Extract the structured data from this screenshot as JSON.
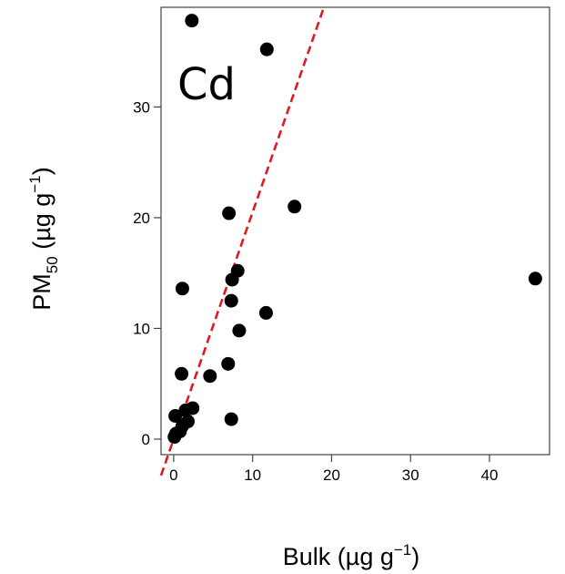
{
  "chart_data": {
    "type": "scatter",
    "panel_label": "Cd",
    "xlabel": {
      "base": "Bulk (µg g",
      "sup": "−1",
      "end": ")"
    },
    "ylabel": {
      "base": "PM",
      "sub": "50",
      "mid": " (µg g",
      "sup": "−1",
      "end": ")"
    },
    "xlim": [
      -1.6,
      47.6
    ],
    "ylim": [
      -1.4,
      39.0
    ],
    "x_ticks": [
      0,
      10,
      20,
      30,
      40
    ],
    "y_ticks": [
      0,
      10,
      20,
      30
    ],
    "x_tick_labels": [
      "0",
      "10",
      "20",
      "30",
      "40"
    ],
    "y_tick_labels": [
      "0",
      "10",
      "20",
      "30"
    ],
    "grid": false,
    "reference_line": {
      "style": "dashed",
      "color": "#e0191f",
      "slope": 2.05,
      "intercept": 0
    },
    "marker_color": "#000000",
    "points": [
      {
        "x": 2.3,
        "y": 37.8
      },
      {
        "x": 11.8,
        "y": 35.2
      },
      {
        "x": 15.3,
        "y": 21.0
      },
      {
        "x": 7.0,
        "y": 20.4
      },
      {
        "x": 8.1,
        "y": 15.2
      },
      {
        "x": 7.4,
        "y": 14.4
      },
      {
        "x": 1.1,
        "y": 13.6
      },
      {
        "x": 7.3,
        "y": 12.5
      },
      {
        "x": 11.7,
        "y": 11.4
      },
      {
        "x": 8.3,
        "y": 9.8
      },
      {
        "x": 6.9,
        "y": 6.8
      },
      {
        "x": 4.6,
        "y": 5.7
      },
      {
        "x": 1.0,
        "y": 5.9
      },
      {
        "x": 2.4,
        "y": 2.8
      },
      {
        "x": 1.5,
        "y": 2.6
      },
      {
        "x": 0.2,
        "y": 2.1
      },
      {
        "x": 1.8,
        "y": 1.6
      },
      {
        "x": 7.3,
        "y": 1.8
      },
      {
        "x": 1.1,
        "y": 1.2
      },
      {
        "x": 0.8,
        "y": 0.7
      },
      {
        "x": 0.3,
        "y": 0.5
      },
      {
        "x": 0.1,
        "y": 0.2
      },
      {
        "x": 45.8,
        "y": 14.5
      }
    ]
  }
}
